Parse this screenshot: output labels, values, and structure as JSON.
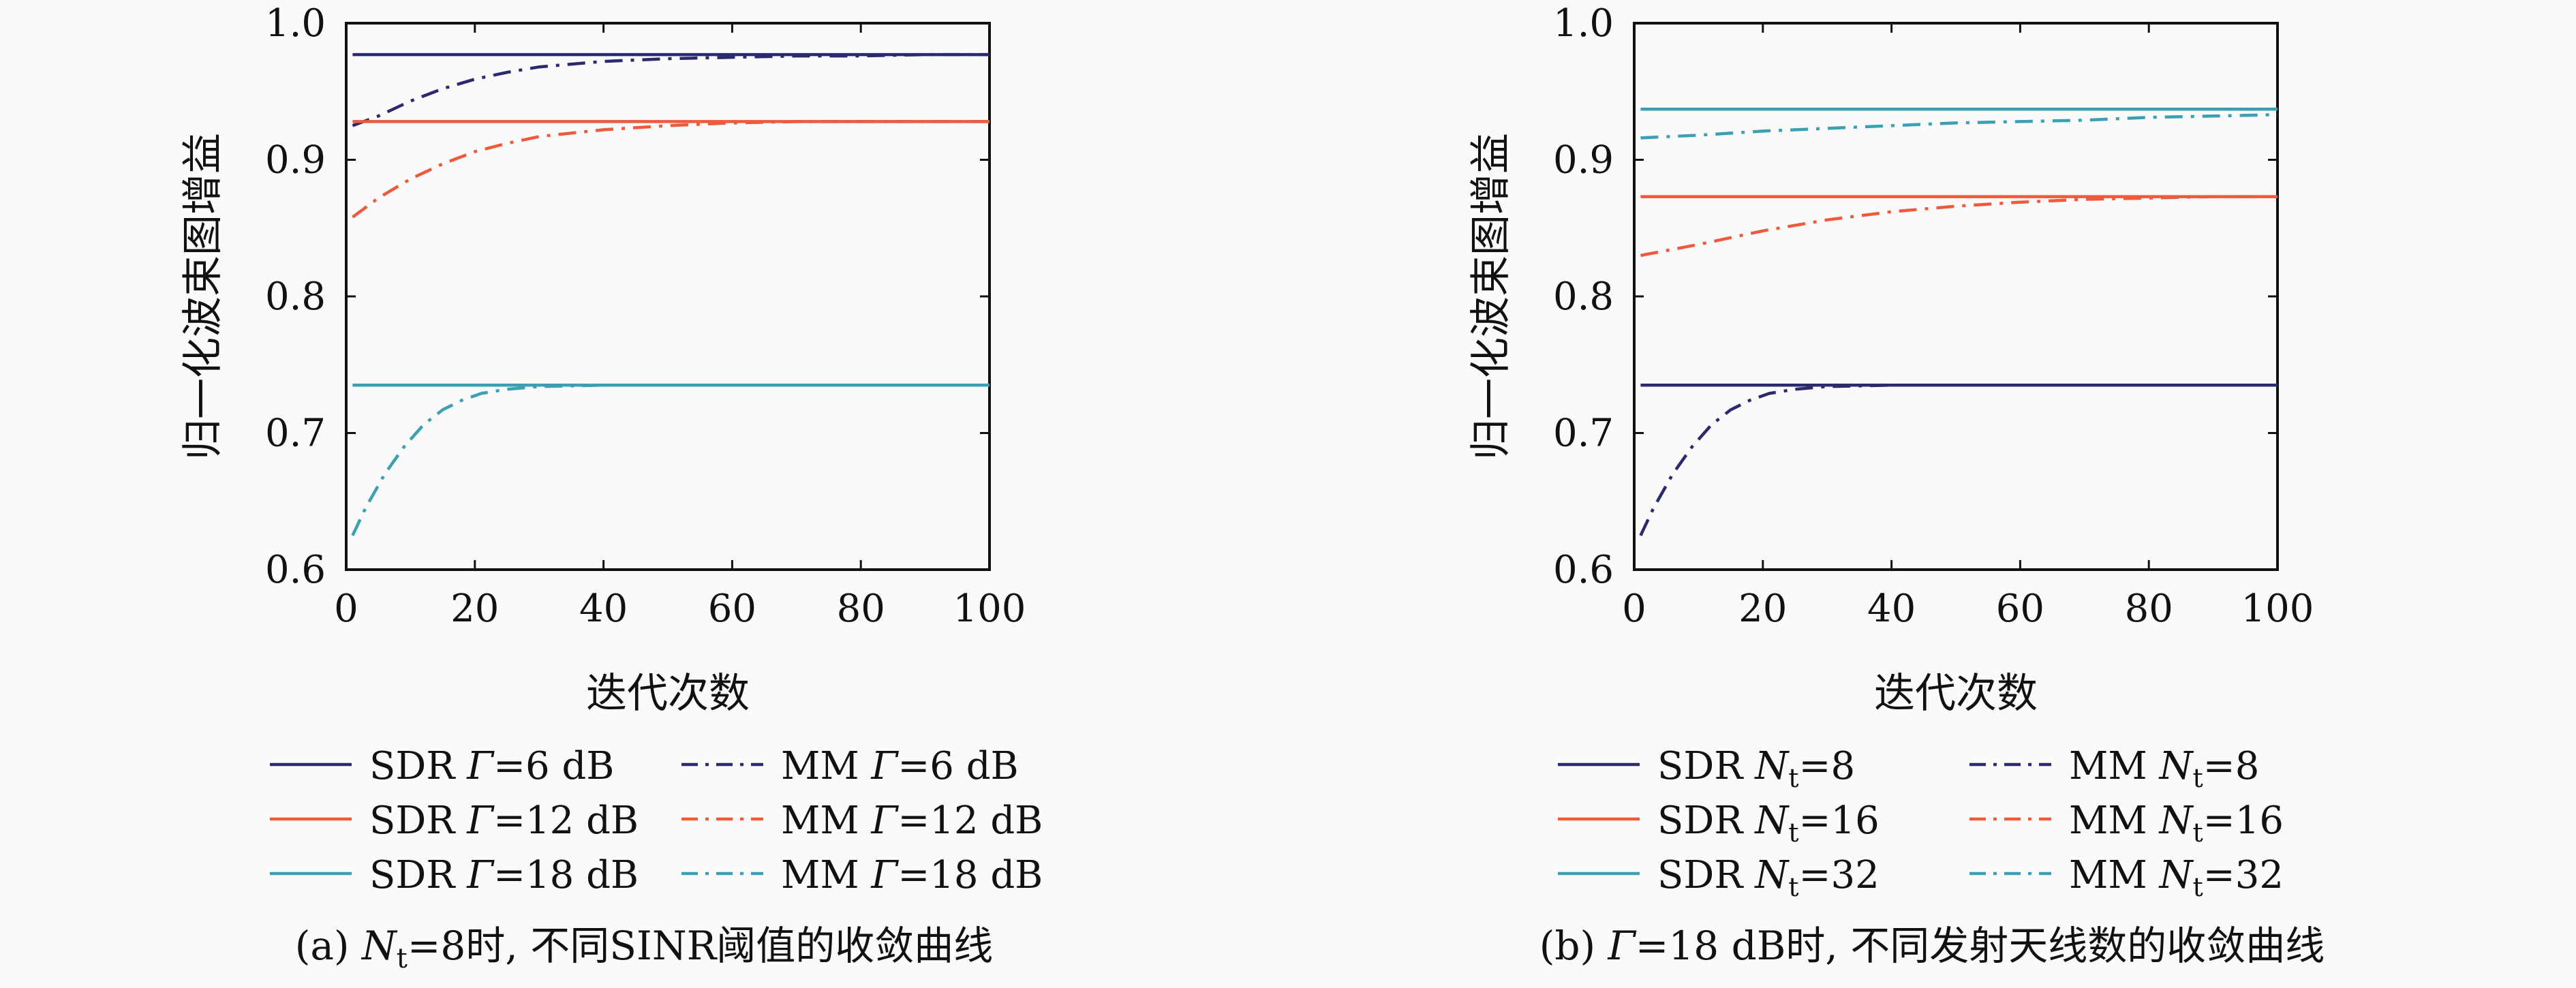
{
  "chart_data": [
    {
      "type": "line",
      "caption": {
        "prefix": "(a) ",
        "var": "N",
        "sub": "t",
        "rest": "=8时, 不同SINR阈值的收敛曲线"
      },
      "xlabel": "迭代次数",
      "ylabel": "归一化波束图增益",
      "xlim": [
        0,
        100
      ],
      "ylim": [
        0.6,
        1.0
      ],
      "xticks": [
        "0",
        "20",
        "40",
        "60",
        "80",
        "100"
      ],
      "yticks": [
        "0.6",
        "0.7",
        "0.8",
        "0.9",
        "1.0"
      ],
      "grid": false,
      "legend_position": "bottom",
      "series": [
        {
          "name": "SDR Γ=6 dB",
          "label": {
            "method": "SDR",
            "var": "Γ",
            "sub": "",
            "value": "=6 dB"
          },
          "color": "#2c2a6e",
          "dash": "solid",
          "x": [
            1,
            100
          ],
          "y": [
            0.977,
            0.977
          ]
        },
        {
          "name": "MM Γ=6 dB",
          "label": {
            "method": "MM",
            "var": "Γ",
            "sub": "",
            "value": "=6 dB"
          },
          "color": "#2c2a6e",
          "dash": "dashdot",
          "x": [
            1,
            5,
            10,
            15,
            20,
            25,
            30,
            40,
            50,
            60,
            70,
            80,
            90,
            100
          ],
          "y": [
            0.925,
            0.932,
            0.943,
            0.952,
            0.959,
            0.964,
            0.968,
            0.972,
            0.974,
            0.975,
            0.976,
            0.976,
            0.977,
            0.977
          ]
        },
        {
          "name": "SDR Γ=12 dB",
          "label": {
            "method": "SDR",
            "var": "Γ",
            "sub": "",
            "value": "=12 dB"
          },
          "color": "#f05a3c",
          "dash": "solid",
          "x": [
            1,
            100
          ],
          "y": [
            0.928,
            0.928
          ]
        },
        {
          "name": "MM Γ=12 dB",
          "label": {
            "method": "MM",
            "var": "Γ",
            "sub": "",
            "value": "=12 dB"
          },
          "color": "#f05a3c",
          "dash": "dashdot",
          "x": [
            1,
            5,
            10,
            15,
            20,
            25,
            30,
            40,
            50,
            60,
            70,
            80,
            90,
            100
          ],
          "y": [
            0.858,
            0.872,
            0.886,
            0.897,
            0.906,
            0.912,
            0.917,
            0.922,
            0.925,
            0.927,
            0.928,
            0.928,
            0.928,
            0.928
          ]
        },
        {
          "name": "SDR Γ=18 dB",
          "label": {
            "method": "SDR",
            "var": "Γ",
            "sub": "",
            "value": "=18 dB"
          },
          "color": "#3aa0b4",
          "dash": "solid",
          "x": [
            1,
            100
          ],
          "y": [
            0.735,
            0.735
          ]
        },
        {
          "name": "MM Γ=18 dB",
          "label": {
            "method": "MM",
            "var": "Γ",
            "sub": "",
            "value": "=18 dB"
          },
          "color": "#3aa0b4",
          "dash": "dashdot",
          "x": [
            1,
            3,
            6,
            9,
            12,
            15,
            18,
            21,
            25,
            30,
            40,
            60,
            80,
            100
          ],
          "y": [
            0.625,
            0.645,
            0.67,
            0.69,
            0.706,
            0.717,
            0.724,
            0.729,
            0.732,
            0.734,
            0.735,
            0.735,
            0.735,
            0.735
          ]
        }
      ]
    },
    {
      "type": "line",
      "caption": {
        "prefix": "(b) ",
        "var": "Γ",
        "sub": "",
        "rest": "=18 dB时, 不同发射天线数的收敛曲线"
      },
      "xlabel": "迭代次数",
      "ylabel": "归一化波束图增益",
      "xlim": [
        0,
        100
      ],
      "ylim": [
        0.6,
        1.0
      ],
      "xticks": [
        "0",
        "20",
        "40",
        "60",
        "80",
        "100"
      ],
      "yticks": [
        "0.6",
        "0.7",
        "0.8",
        "0.9",
        "1.0"
      ],
      "grid": false,
      "legend_position": "bottom",
      "series": [
        {
          "name": "SDR Nt=8",
          "label": {
            "method": "SDR",
            "var": "N",
            "sub": "t",
            "value": "=8"
          },
          "color": "#2c2a6e",
          "dash": "solid",
          "x": [
            1,
            100
          ],
          "y": [
            0.735,
            0.735
          ]
        },
        {
          "name": "MM Nt=8",
          "label": {
            "method": "MM",
            "var": "N",
            "sub": "t",
            "value": "=8"
          },
          "color": "#2c2a6e",
          "dash": "dashdot",
          "x": [
            1,
            3,
            6,
            9,
            12,
            15,
            18,
            21,
            25,
            30,
            40,
            60,
            80,
            100
          ],
          "y": [
            0.625,
            0.645,
            0.67,
            0.69,
            0.706,
            0.717,
            0.724,
            0.729,
            0.732,
            0.734,
            0.735,
            0.735,
            0.735,
            0.735
          ]
        },
        {
          "name": "SDR Nt=16",
          "label": {
            "method": "SDR",
            "var": "N",
            "sub": "t",
            "value": "=16"
          },
          "color": "#f05a3c",
          "dash": "solid",
          "x": [
            1,
            100
          ],
          "y": [
            0.873,
            0.873
          ]
        },
        {
          "name": "MM Nt=16",
          "label": {
            "method": "MM",
            "var": "N",
            "sub": "t",
            "value": "=16"
          },
          "color": "#f05a3c",
          "dash": "dashdot",
          "x": [
            1,
            10,
            20,
            30,
            40,
            50,
            60,
            70,
            80,
            90,
            100
          ],
          "y": [
            0.83,
            0.838,
            0.848,
            0.856,
            0.862,
            0.866,
            0.869,
            0.871,
            0.872,
            0.873,
            0.873
          ]
        },
        {
          "name": "SDR Nt=32",
          "label": {
            "method": "SDR",
            "var": "N",
            "sub": "t",
            "value": "=32"
          },
          "color": "#3aa0b4",
          "dash": "solid",
          "x": [
            1,
            100
          ],
          "y": [
            0.937,
            0.937
          ]
        },
        {
          "name": "MM Nt=32",
          "label": {
            "method": "MM",
            "var": "N",
            "sub": "t",
            "value": "=32"
          },
          "color": "#3aa0b4",
          "dash": "dashdot",
          "x": [
            1,
            10,
            20,
            30,
            40,
            50,
            60,
            70,
            80,
            90,
            100
          ],
          "y": [
            0.916,
            0.918,
            0.921,
            0.923,
            0.925,
            0.927,
            0.928,
            0.929,
            0.931,
            0.932,
            0.933
          ]
        }
      ]
    }
  ]
}
